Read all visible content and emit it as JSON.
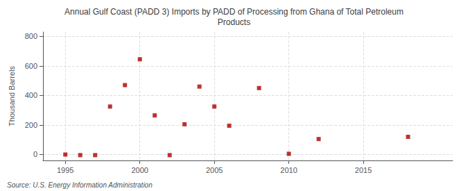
{
  "chart_data": {
    "type": "scatter",
    "title": "Annual Gulf Coast (PADD 3) Imports by PADD of Processing from Ghana of Total Petroleum\nProducts",
    "ylabel": "Thousand Barrels",
    "annotations": [
      "Source: U.S. Energy Information Administration"
    ],
    "x": [
      1995,
      1996,
      1997,
      1998,
      1999,
      2000,
      2001,
      2002,
      2003,
      2004,
      2005,
      2006,
      2008,
      2010,
      2012,
      2018
    ],
    "values": [
      0,
      -4,
      -4,
      325,
      470,
      645,
      265,
      -4,
      205,
      460,
      325,
      195,
      450,
      5,
      105,
      120
    ],
    "color": "#aa0000",
    "marker": "square",
    "xlim": [
      1993.5,
      2021
    ],
    "xticks": [
      1995,
      2000,
      2005,
      2010,
      2015
    ],
    "ylim": [
      -40,
      830
    ],
    "yticks": [
      0,
      200,
      400,
      600,
      800
    ],
    "grid": true
  }
}
